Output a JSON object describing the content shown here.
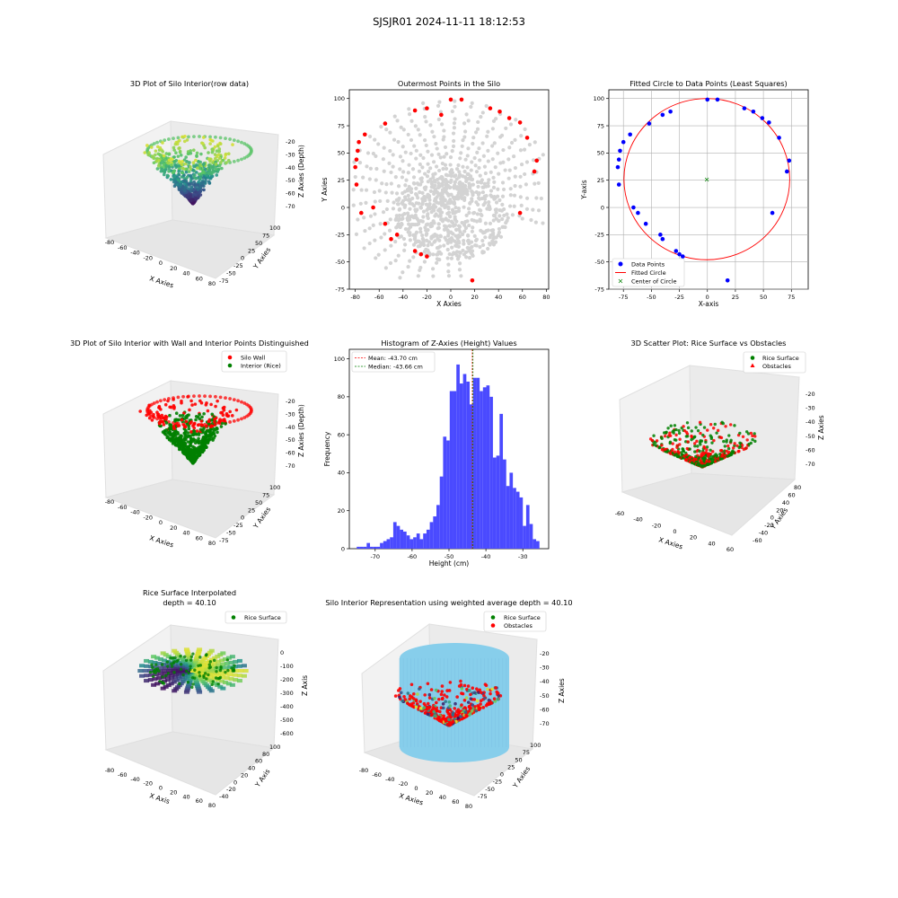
{
  "figure": {
    "suptitle": "SJSJR01 2024-11-11 18:12:53"
  },
  "chart_data": [
    {
      "id": "p1",
      "type": "scatter3d",
      "title": "3D Plot of Silo Interior(row data)",
      "xlabel": "X Axies",
      "ylabel": "Y Axies",
      "zlabel": "Z Axies (Depth)",
      "xticks": [
        "-80",
        "-60",
        "-40",
        "-20",
        "0",
        "20",
        "40",
        "60",
        "80"
      ],
      "yticks": [
        "-75",
        "-50",
        "-25",
        "0",
        "25",
        "50",
        "75",
        "100"
      ],
      "zticks": [
        "-20",
        "-30",
        "-40",
        "-50",
        "-60",
        "-70"
      ],
      "colormap": "viridis"
    },
    {
      "id": "p2",
      "type": "scatter",
      "title": "Outermost Points in the Silo",
      "xlabel": "X Axies",
      "ylabel": "Y Axies",
      "xlim": [
        -85,
        82
      ],
      "ylim": [
        -75,
        108
      ],
      "xticks": [
        -80,
        -60,
        -40,
        -20,
        0,
        20,
        40,
        60,
        80
      ],
      "yticks": [
        -75,
        -50,
        -25,
        0,
        25,
        50,
        75,
        100
      ],
      "grid": false,
      "series": [
        {
          "color": "#d3d3d3",
          "points": [
            [
              0,
              95
            ],
            [
              -10,
              92
            ],
            [
              10,
              92
            ],
            [
              -25,
              88
            ],
            [
              25,
              88
            ],
            [
              -40,
              80
            ],
            [
              40,
              80
            ],
            [
              -52,
              70
            ],
            [
              52,
              70
            ],
            [
              -62,
              58
            ],
            [
              62,
              58
            ],
            [
              -68,
              45
            ],
            [
              68,
              45
            ],
            [
              -72,
              30
            ],
            [
              72,
              30
            ],
            [
              -72,
              15
            ],
            [
              72,
              15
            ],
            [
              -70,
              0
            ],
            [
              70,
              0
            ],
            [
              -62,
              -15
            ],
            [
              62,
              -15
            ],
            [
              -50,
              -28
            ],
            [
              50,
              -28
            ],
            [
              -35,
              -38
            ],
            [
              35,
              -38
            ],
            [
              -15,
              -45
            ],
            [
              15,
              -45
            ],
            [
              0,
              -48
            ],
            [
              0,
              0
            ],
            [
              0,
              -30
            ],
            [
              -20,
              -30
            ],
            [
              20,
              -30
            ],
            [
              -40,
              -20
            ],
            [
              40,
              -20
            ],
            [
              -20,
              60
            ],
            [
              20,
              60
            ],
            [
              0,
              70
            ],
            [
              -40,
              50
            ],
            [
              40,
              50
            ]
          ]
        },
        {
          "color": "#ff0000",
          "points": [
            [
              0,
              99
            ],
            [
              9,
              99
            ],
            [
              -20,
              91
            ],
            [
              -30,
              89
            ],
            [
              33,
              91
            ],
            [
              41,
              88
            ],
            [
              49,
              82
            ],
            [
              58,
              78
            ],
            [
              -8,
              85
            ],
            [
              -55,
              77
            ],
            [
              -78,
              52
            ],
            [
              -80,
              37
            ],
            [
              -77,
              60
            ],
            [
              -72,
              67
            ],
            [
              -79,
              44
            ],
            [
              -79,
              21
            ],
            [
              -65,
              0
            ],
            [
              -75,
              -5
            ],
            [
              -55,
              -15
            ],
            [
              -50,
              -29
            ],
            [
              -45,
              -25
            ],
            [
              -30,
              -40
            ],
            [
              -25,
              -43
            ],
            [
              -20,
              -45
            ],
            [
              18,
              -67
            ],
            [
              58,
              -5
            ],
            [
              70,
              33
            ],
            [
              72,
              43
            ],
            [
              64,
              64
            ]
          ]
        }
      ]
    },
    {
      "id": "p3",
      "type": "scatter",
      "title": "Fitted Circle to Data Points (Least Squares)",
      "xlabel": "X-axis",
      "ylabel": "Y-axis",
      "xlim": [
        -88,
        90
      ],
      "ylim": [
        -75,
        108
      ],
      "xticks": [
        -75,
        -50,
        -25,
        0,
        25,
        50,
        75
      ],
      "yticks": [
        -75,
        -50,
        -25,
        0,
        25,
        50,
        75,
        100
      ],
      "grid": true,
      "legend": [
        "Data Points",
        "Fitted Circle",
        "Center of Circle"
      ],
      "legend_loc": "lower left",
      "circle": {
        "cx": -0.5,
        "cy": 26,
        "r": 74
      },
      "center": [
        -0.5,
        26
      ],
      "points": [
        [
          0,
          99
        ],
        [
          9,
          99
        ],
        [
          -33,
          88
        ],
        [
          -40,
          85
        ],
        [
          33,
          91
        ],
        [
          41,
          88
        ],
        [
          49,
          82
        ],
        [
          55,
          78
        ],
        [
          -52,
          77
        ],
        [
          -78,
          52
        ],
        [
          -80,
          37
        ],
        [
          -75,
          60
        ],
        [
          -69,
          67
        ],
        [
          -79,
          44
        ],
        [
          -79,
          21
        ],
        [
          -66,
          0
        ],
        [
          -62,
          -5
        ],
        [
          -55,
          -15
        ],
        [
          -42,
          -25
        ],
        [
          -40,
          -29
        ],
        [
          -28,
          -40
        ],
        [
          -25,
          -43
        ],
        [
          -22,
          -45
        ],
        [
          18,
          -67
        ],
        [
          58,
          -5
        ],
        [
          71,
          33
        ],
        [
          73,
          43
        ],
        [
          64,
          64
        ]
      ]
    },
    {
      "id": "p4",
      "type": "scatter3d",
      "title": "3D Plot of Silo Interior with Wall and Interior Points Distinguished",
      "xlabel": "X Axies",
      "ylabel": "Y Axies",
      "zlabel": "Z Axies (Depth)",
      "legend": [
        "Silo Wall",
        "Interior (Rice)"
      ],
      "xticks": [
        "-80",
        "-60",
        "-40",
        "-20",
        "0",
        "20",
        "40",
        "60",
        "80"
      ],
      "yticks": [
        "-75",
        "-50",
        "-25",
        "0",
        "25",
        "50",
        "75",
        "100"
      ],
      "zticks": [
        "-20",
        "-30",
        "-40",
        "-50",
        "-60",
        "-70"
      ]
    },
    {
      "id": "p5",
      "type": "histogram",
      "title": "Histogram of Z-Axies (Height) Values",
      "xlabel": "Height (cm)",
      "ylabel": "Frequency",
      "xlim": [
        -77,
        -23
      ],
      "ylim": [
        0,
        105
      ],
      "xticks": [
        -70,
        -60,
        -50,
        -40,
        -30
      ],
      "yticks": [
        0,
        20,
        40,
        60,
        80,
        100
      ],
      "bin_start": -75,
      "bin_width": 0.9,
      "counts": [
        1,
        1,
        1,
        3,
        1,
        1,
        1,
        3,
        4,
        5,
        6,
        14,
        12,
        10,
        9,
        7,
        5,
        6,
        8,
        5,
        8,
        10,
        14,
        17,
        23,
        38,
        59,
        57,
        83,
        83,
        97,
        87,
        92,
        88,
        76,
        90,
        90,
        83,
        85,
        86,
        80,
        48,
        49,
        71,
        47,
        33,
        40,
        32,
        30,
        27,
        12,
        23,
        13,
        5,
        4
      ],
      "bar_color": "#4a4aff",
      "mean": -43.7,
      "median": -43.66,
      "legend": [
        "Mean: -43.70 cm",
        "Median: -43.66 cm"
      ]
    },
    {
      "id": "p6",
      "type": "scatter3d",
      "title": "3D Scatter Plot: Rice Surface vs Obstacles",
      "xlabel": "X Axies",
      "ylabel": "Y Axies",
      "zlabel": "Z Axies",
      "legend": [
        "Rice Surface",
        "Obstacles"
      ],
      "xticks": [
        "-60",
        "-40",
        "-20",
        "0",
        "20",
        "40",
        "60"
      ],
      "yticks": [
        "-60",
        "-40",
        "-20",
        "0",
        "20",
        "40",
        "60",
        "80"
      ],
      "zticks": [
        "-20",
        "-30",
        "-40",
        "-50",
        "-60",
        "-70"
      ]
    },
    {
      "id": "p7",
      "type": "surface3d",
      "title_lines": [
        "Rice Surface Interpolated",
        "depth = 40.10"
      ],
      "xlabel": "X Axis",
      "ylabel": "Y Axis",
      "zlabel": "Z Axis",
      "legend": [
        "Rice Surface"
      ],
      "xticks": [
        "-80",
        "-60",
        "-40",
        "-20",
        "0",
        "20",
        "40",
        "60",
        "80"
      ],
      "yticks": [
        "-40",
        "-20",
        "0",
        "20",
        "40",
        "60",
        "80",
        "100"
      ],
      "zticks": [
        "0",
        "-100",
        "-200",
        "-300",
        "-400",
        "-500",
        "-600"
      ]
    },
    {
      "id": "p8",
      "type": "cylinder3d",
      "title": "Silo Interior Representation using weighted average depth = 40.10",
      "xlabel": "X Axies",
      "ylabel": "Y Axies",
      "zlabel": "Z Axies",
      "legend": [
        "Rice Surface",
        "Obstacles"
      ],
      "xticks": [
        "-80",
        "-60",
        "-40",
        "-20",
        "0",
        "20",
        "40",
        "60",
        "80"
      ],
      "yticks": [
        "-75",
        "-50",
        "-25",
        "0",
        "25",
        "50",
        "75",
        "100"
      ],
      "zticks": [
        "-20",
        "-30",
        "-40",
        "-50",
        "-60",
        "-70"
      ]
    }
  ]
}
